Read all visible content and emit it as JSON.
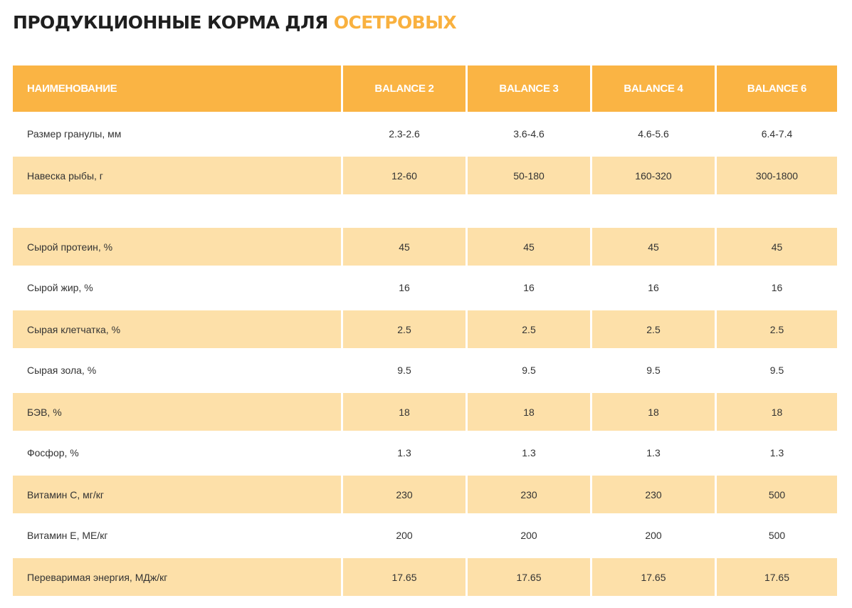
{
  "title": {
    "main": "ПРОДУКЦИОННЫЕ КОРМА ДЛЯ",
    "accent": "ОСЕТРОВЫХ"
  },
  "colors": {
    "accent": "#f9b13f",
    "header_bg": "#fab444",
    "row_shade": "#fde0a9"
  },
  "table": {
    "headers": [
      "НАИМЕНОВАНИЕ",
      "BALANCE 2",
      "BALANCE 3",
      "BALANCE 4",
      "BALANCE 6"
    ],
    "rows": [
      {
        "label": "Размер гранулы, мм",
        "values": [
          "2.3-2.6",
          "3.6-4.6",
          "4.6-5.6",
          "6.4-7.4"
        ]
      },
      {
        "label": "Навеска рыбы, г",
        "values": [
          "12-60",
          "50-180",
          "160-320",
          "300-1800"
        ]
      },
      {
        "label": "Сырой протеин, %",
        "values": [
          "45",
          "45",
          "45",
          "45"
        ]
      },
      {
        "label": "Сырой жир, %",
        "values": [
          "16",
          "16",
          "16",
          "16"
        ]
      },
      {
        "label": "Сырая клетчатка, %",
        "values": [
          "2.5",
          "2.5",
          "2.5",
          "2.5"
        ]
      },
      {
        "label": "Сырая зола, %",
        "values": [
          "9.5",
          "9.5",
          "9.5",
          "9.5"
        ]
      },
      {
        "label": "БЭВ, %",
        "values": [
          "18",
          "18",
          "18",
          "18"
        ]
      },
      {
        "label": "Фосфор, %",
        "values": [
          "1.3",
          "1.3",
          "1.3",
          "1.3"
        ]
      },
      {
        "label": "Витамин С, мг/кг",
        "values": [
          "230",
          "230",
          "230",
          "500"
        ]
      },
      {
        "label": "Витамин Е, МЕ/кг",
        "values": [
          "200",
          "200",
          "200",
          "500"
        ]
      },
      {
        "label": "Переваримая энергия, МДж/кг",
        "values": [
          "17.65",
          "17.65",
          "17.65",
          "17.65"
        ]
      }
    ]
  }
}
